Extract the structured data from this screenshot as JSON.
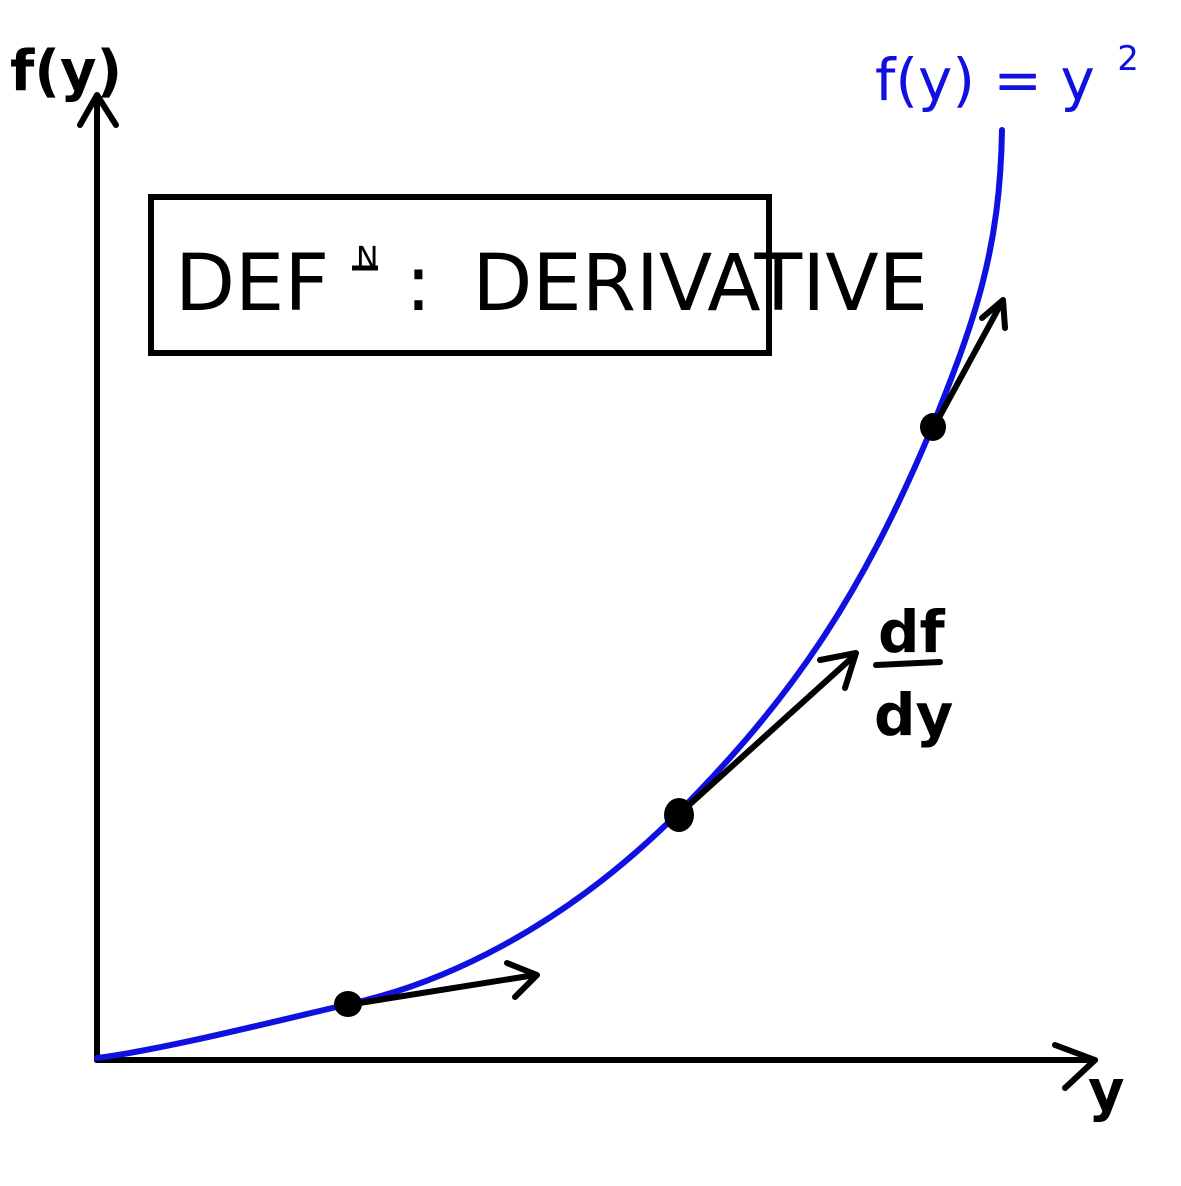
{
  "axes": {
    "y_axis_label": "f(y)",
    "x_axis_label": "y"
  },
  "title_box": {
    "prefix": "DEF",
    "superscript": "N",
    "colon": ":",
    "word": "DERIVATIVE"
  },
  "curve": {
    "label": "f(y) = y",
    "exponent": "2",
    "color": "#1010e0"
  },
  "tangent_label": {
    "numerator": "df",
    "denominator": "dy"
  },
  "colors": {
    "ink": "#000000",
    "curve": "#1010e0",
    "background": "#ffffff"
  },
  "tangent_points": [
    {
      "name": "low-slope-point"
    },
    {
      "name": "mid-slope-point"
    },
    {
      "name": "high-slope-point"
    }
  ]
}
